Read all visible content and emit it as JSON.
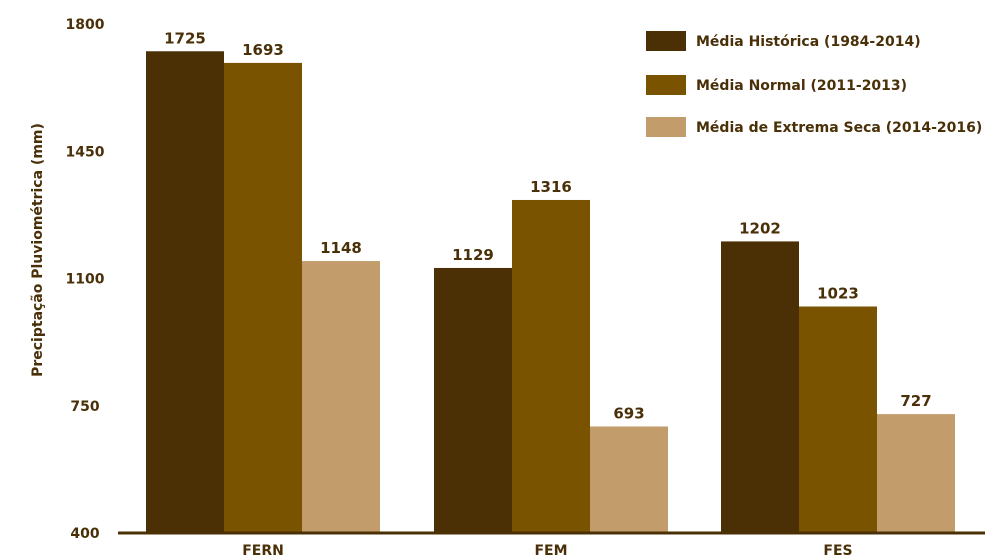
{
  "chart_data": {
    "type": "bar",
    "title": "",
    "xlabel": "",
    "ylabel": "Preciptação Pluviométrica (mm)",
    "ylim": [
      400,
      1800
    ],
    "yticks": [
      400,
      750,
      1100,
      1450,
      1800
    ],
    "categories": [
      "FERN",
      "FEM",
      "FES"
    ],
    "series": [
      {
        "name": "Média Histórica (1984-2014)",
        "color": "#4b3006",
        "values": [
          1725,
          1129,
          1202
        ]
      },
      {
        "name": "Média Normal (2011-2013)",
        "color": "#7a5300",
        "values": [
          1693,
          1316,
          1023
        ]
      },
      {
        "name": "Média de Extrema Seca (2014-2016)",
        "color": "#c39c6b",
        "values": [
          1148,
          693,
          727
        ]
      }
    ],
    "legend_position": "top-right",
    "grid": false
  }
}
